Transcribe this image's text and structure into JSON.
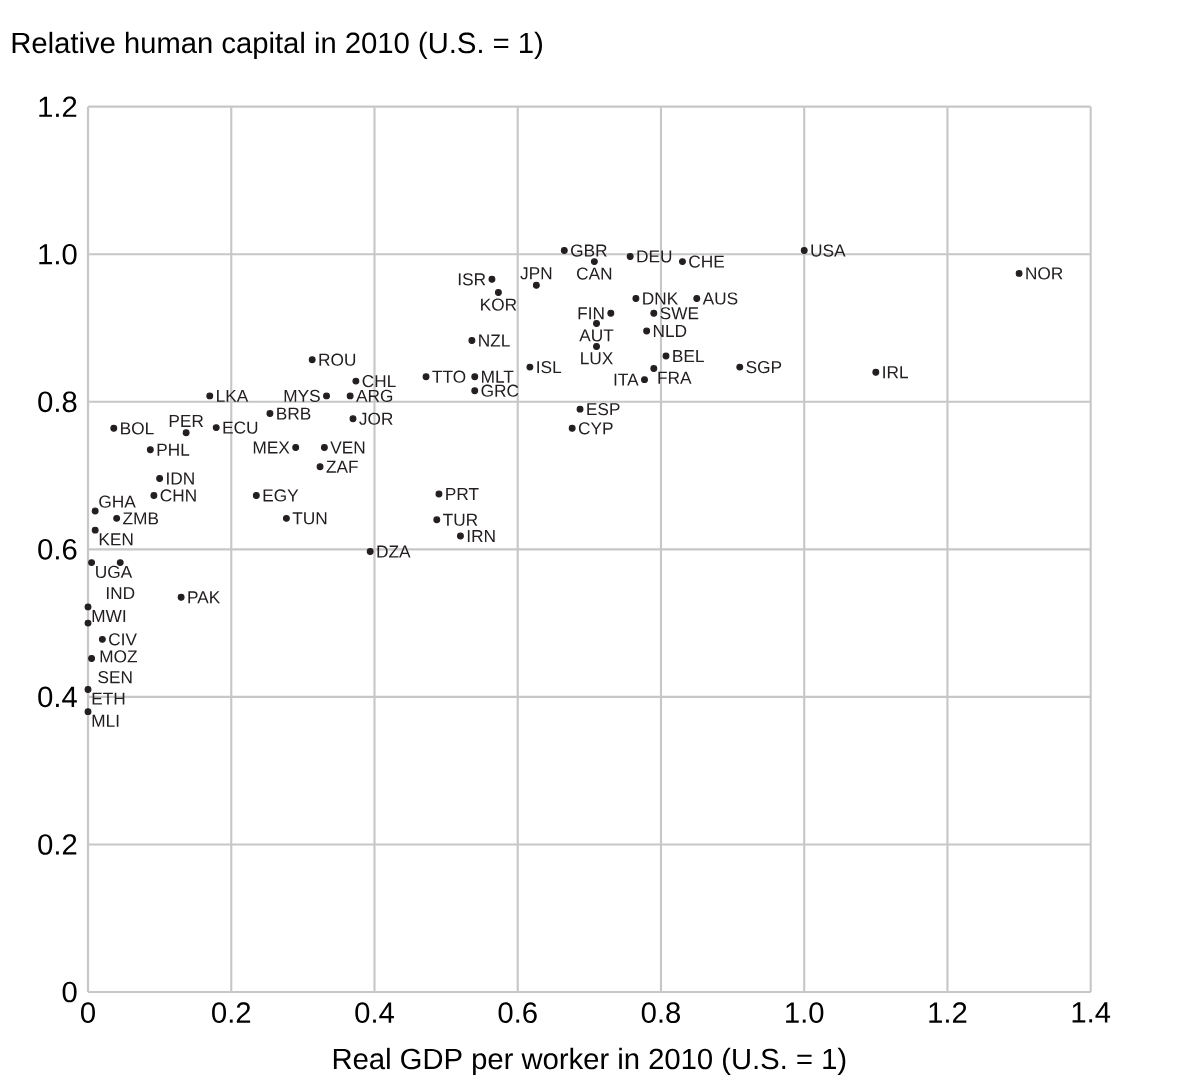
{
  "chart_data": {
    "type": "scatter",
    "ylabel": "Relative human capital in 2010 (U.S. = 1)",
    "xlabel": "Real GDP per worker in 2010 (U.S. = 1)",
    "xlim": [
      0,
      1.4
    ],
    "ylim": [
      0,
      1.2
    ],
    "xticks": [
      0,
      0.2,
      0.4,
      0.6,
      0.8,
      {
        "value": 1,
        "label": "1.0"
      },
      1.2,
      1.4
    ],
    "yticks": [
      0,
      0.2,
      0.4,
      0.6,
      0.8,
      {
        "value": 1,
        "label": "1.0"
      },
      1.2
    ],
    "grid": true,
    "marker": "circle",
    "series": [
      {
        "color": "#231f20",
        "x": [
          1.0,
          1.3,
          1.1,
          0.91,
          0.83,
          0.85,
          0.765,
          0.665,
          0.707,
          0.757,
          0.564,
          0.573,
          0.626,
          0.73,
          0.71,
          0.78,
          0.79,
          0.71,
          0.807,
          0.79,
          0.777,
          0.617,
          0.536,
          0.472,
          0.54,
          0.54,
          0.687,
          0.676,
          0.49,
          0.487,
          0.52,
          0.394,
          0.313,
          0.374,
          0.333,
          0.366,
          0.37,
          0.17,
          0.254,
          0.036,
          0.137,
          0.179,
          0.087,
          0.29,
          0.33,
          0.324,
          0.1,
          0.092,
          0.235,
          0.277,
          0.01,
          0.04,
          0.01,
          0.005,
          0.045,
          0.13,
          0.0,
          0.0,
          0.02,
          0.005,
          0.0,
          0.0
        ],
        "values": [
          1.005,
          0.974,
          0.84,
          0.847,
          0.99,
          0.94,
          0.94,
          1.005,
          0.99,
          0.997,
          0.966,
          0.948,
          0.958,
          0.92,
          0.906,
          0.896,
          0.92,
          0.875,
          0.862,
          0.845,
          0.83,
          0.847,
          0.883,
          0.834,
          0.834,
          0.815,
          0.79,
          0.764,
          0.675,
          0.64,
          0.618,
          0.597,
          0.857,
          0.828,
          0.808,
          0.808,
          0.777,
          0.808,
          0.784,
          0.764,
          0.758,
          0.765,
          0.735,
          0.738,
          0.738,
          0.712,
          0.696,
          0.673,
          0.673,
          0.642,
          0.652,
          0.642,
          0.626,
          0.582,
          0.582,
          0.535,
          0.522,
          0.5,
          0.478,
          0.452,
          0.41,
          0.38
        ],
        "value_labels": [
          "USA",
          "NOR",
          "IRL",
          "SGP",
          "CHE",
          "AUS",
          "DNK",
          "GBR",
          "CAN",
          "DEU",
          "ISR",
          "KOR",
          "JPN",
          "FIN",
          "AUT",
          "NLD",
          "SWE",
          "LUX",
          "BEL",
          "FRA",
          "ITA",
          "ISL",
          "NZL",
          "TTO",
          "MLT",
          "GRC",
          "ESP",
          "CYP",
          "PRT",
          "TUR",
          "IRN",
          "DZA",
          "ROU",
          "CHL",
          "MYS",
          "ARG",
          "JOR",
          "LKA",
          "BRB",
          "BOL",
          "PER",
          "ECU",
          "PHL",
          "MEX",
          "VEN",
          "ZAF",
          "IDN",
          "CHN",
          "EGY",
          "TUN",
          "GHA",
          "ZMB",
          "KEN",
          "UGA",
          "IND",
          "PAK",
          "MWI",
          "MOZ",
          "CIV",
          "SEN",
          "ETH",
          "MLI"
        ]
      }
    ]
  }
}
